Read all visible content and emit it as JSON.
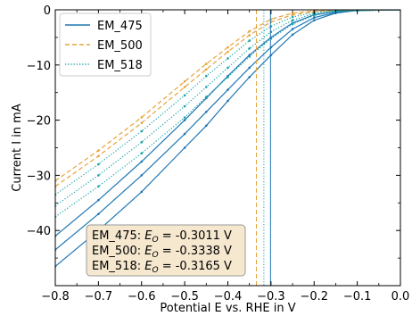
{
  "chart_data": {
    "type": "line",
    "xlabel": "Potential E vs. RHE in V",
    "ylabel": "Current I in mA",
    "xlim": [
      -0.8,
      0.0
    ],
    "ylim": [
      -50,
      0
    ],
    "xticks": [
      -0.8,
      -0.7,
      -0.6,
      -0.5,
      -0.4,
      -0.3,
      -0.2,
      -0.1,
      0.0
    ],
    "xtick_labels": [
      "−0.8",
      "−0.7",
      "−0.6",
      "−0.5",
      "−0.4",
      "−0.3",
      "−0.2",
      "−0.1",
      "0.0"
    ],
    "yticks": [
      0,
      -10,
      -20,
      -30,
      -40
    ],
    "ytick_labels": [
      "0",
      "−10",
      "−20",
      "−30",
      "−40"
    ],
    "grid": false,
    "legend_position": "top-left",
    "series": [
      {
        "name": "EM_475",
        "color": "#1f77b4",
        "style": "solid",
        "onset": -0.3011,
        "scans": [
          {
            "x": [
              -0.8,
              -0.7,
              -0.6,
              -0.5,
              -0.45,
              -0.4,
              -0.35,
              -0.3,
              -0.25,
              -0.2,
              -0.15,
              -0.1,
              0.0
            ],
            "y": [
              -41,
              -34.5,
              -27.5,
              -20,
              -16,
              -12,
              -8.2,
              -5,
              -2.4,
              -0.9,
              -0.3,
              -0.1,
              0
            ]
          },
          {
            "x": [
              -0.8,
              -0.7,
              -0.6,
              -0.5,
              -0.45,
              -0.4,
              -0.35,
              -0.3,
              -0.25,
              -0.2,
              -0.15,
              -0.1,
              0.0
            ],
            "y": [
              -43.5,
              -37,
              -30,
              -22.5,
              -18.5,
              -14.5,
              -10.5,
              -6.8,
              -3.5,
              -1.4,
              -0.5,
              -0.1,
              0
            ]
          },
          {
            "x": [
              -0.8,
              -0.7,
              -0.6,
              -0.5,
              -0.45,
              -0.4,
              -0.35,
              -0.3,
              -0.25,
              -0.2,
              -0.15,
              -0.1,
              0.0
            ],
            "y": [
              -46.5,
              -40,
              -33,
              -25,
              -21,
              -16.5,
              -12.2,
              -8.2,
              -4.5,
              -1.9,
              -0.6,
              -0.1,
              0
            ]
          }
        ]
      },
      {
        "name": "EM_500",
        "color": "#e6a33b",
        "style": "dashed",
        "onset": -0.3338,
        "scans": [
          {
            "x": [
              -0.8,
              -0.7,
              -0.6,
              -0.5,
              -0.45,
              -0.4,
              -0.35,
              -0.3,
              -0.25,
              -0.2,
              -0.15,
              0.0
            ],
            "y": [
              -31,
              -25.5,
              -19.5,
              -13,
              -9.8,
              -6.8,
              -3.9,
              -1.7,
              -0.6,
              -0.2,
              -0.1,
              0
            ]
          },
          {
            "x": [
              -0.8,
              -0.7,
              -0.6,
              -0.5,
              -0.45,
              -0.4,
              -0.35,
              -0.3,
              -0.25,
              -0.2,
              -0.15,
              0.0
            ],
            "y": [
              -32,
              -26.5,
              -20.5,
              -14,
              -10.8,
              -7.6,
              -4.6,
              -2.2,
              -0.9,
              -0.3,
              -0.1,
              0
            ]
          }
        ]
      },
      {
        "name": "EM_518",
        "color": "#17a2a8",
        "style": "dotted",
        "onset": -0.3165,
        "scans": [
          {
            "x": [
              -0.8,
              -0.7,
              -0.6,
              -0.5,
              -0.45,
              -0.4,
              -0.35,
              -0.3,
              -0.25,
              -0.2,
              -0.15,
              0.0
            ],
            "y": [
              -33.5,
              -28,
              -22,
              -15.5,
              -12,
              -8.8,
              -5.6,
              -3,
              -1.3,
              -0.5,
              -0.1,
              0
            ]
          },
          {
            "x": [
              -0.8,
              -0.7,
              -0.6,
              -0.5,
              -0.45,
              -0.4,
              -0.35,
              -0.3,
              -0.25,
              -0.2,
              -0.15,
              0.0
            ],
            "y": [
              -35.5,
              -30,
              -24,
              -17.5,
              -14,
              -10.5,
              -7,
              -4,
              -1.9,
              -0.7,
              -0.2,
              0
            ]
          },
          {
            "x": [
              -0.8,
              -0.7,
              -0.6,
              -0.5,
              -0.45,
              -0.4,
              -0.35,
              -0.3,
              -0.25,
              -0.2,
              -0.15,
              0.0
            ],
            "y": [
              -37.5,
              -32,
              -26,
              -19.5,
              -15.8,
              -12.2,
              -8.5,
              -5.2,
              -2.6,
              -1,
              -0.3,
              0
            ]
          }
        ]
      }
    ],
    "annotations": [
      {
        "label": "EM_475",
        "symbol": "E",
        "subscript": "O",
        "value": "= -0.3011 V"
      },
      {
        "label": "EM_500",
        "symbol": "E",
        "subscript": "O",
        "value": "= -0.3338 V"
      },
      {
        "label": "EM_518",
        "symbol": "E",
        "subscript": "O",
        "value": "= -0.3165 V"
      }
    ],
    "annotation_box_color": "#f6e8cf"
  }
}
